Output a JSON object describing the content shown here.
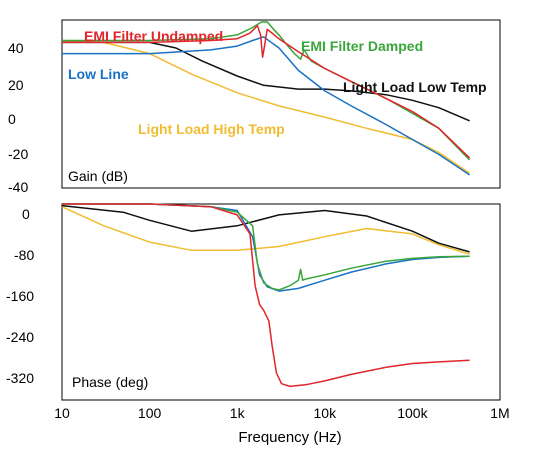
{
  "chart_data": [
    {
      "type": "line",
      "x_scale": "log",
      "xlim": [
        10,
        1000000
      ],
      "ylim": [
        -40,
        50
      ],
      "yticks": [
        40,
        20,
        0,
        -20,
        -40
      ],
      "ylabel": "Gain (dB)",
      "series": [
        {
          "name": "EMI Filter Undamped",
          "color": "#e0252b",
          "x": [
            10,
            100,
            500,
            1000,
            1400,
            1700,
            1850,
            1950,
            2050,
            2200,
            2500,
            2800,
            3200,
            5000,
            10000,
            20000,
            50000,
            100000,
            200000,
            450000
          ],
          "y": [
            38,
            38,
            39,
            40,
            43,
            47,
            42,
            30,
            36,
            45,
            43,
            41,
            39,
            33,
            24,
            17,
            8,
            1,
            -8,
            -24
          ]
        },
        {
          "name": "EMI Filter Damped",
          "color": "#3aa63a",
          "x": [
            10,
            100,
            500,
            1000,
            1500,
            1900,
            2200,
            2600,
            3000,
            3500,
            4500,
            5300,
            5800,
            7000,
            10000,
            20000,
            50000,
            100000,
            200000,
            450000
          ],
          "y": [
            39,
            39,
            40,
            42,
            46,
            49,
            49,
            45,
            42,
            38,
            32,
            29,
            34,
            28,
            24,
            17,
            8,
            0,
            -8,
            -25
          ]
        },
        {
          "name": "Low Line",
          "color": "#1a72c4",
          "x": [
            10,
            100,
            500,
            1000,
            1500,
            2000,
            3000,
            5000,
            10000,
            20000,
            50000,
            100000,
            200000,
            450000
          ],
          "y": [
            32,
            32,
            34,
            36,
            39,
            41,
            35,
            23,
            12,
            4,
            -6,
            -14,
            -22,
            -33
          ]
        },
        {
          "name": "Light Load Low Temp",
          "color": "#111111",
          "x": [
            10,
            100,
            200,
            400,
            1000,
            2000,
            5000,
            10000,
            20000,
            50000,
            100000,
            200000,
            450000
          ],
          "y": [
            38,
            38,
            35,
            28,
            20,
            15,
            13,
            13,
            12,
            10,
            7,
            3,
            -4
          ]
        },
        {
          "name": "Light Load High Temp",
          "color": "#f2bc30",
          "x": [
            10,
            30,
            100,
            300,
            1000,
            3000,
            10000,
            30000,
            100000,
            200000,
            450000
          ],
          "y": [
            39,
            38,
            32,
            21,
            11,
            4,
            -2,
            -8,
            -14,
            -21,
            -32
          ]
        }
      ]
    },
    {
      "type": "line",
      "x_scale": "log",
      "xlim": [
        10,
        1000000
      ],
      "ylim": [
        -360,
        0
      ],
      "yticks": [
        0,
        -80,
        -160,
        -240,
        -320
      ],
      "ylabel": "Phase (deg)",
      "xlabel": "Frequency (Hz)",
      "xticks": [
        10,
        100,
        1000,
        10000,
        100000,
        1000000
      ],
      "xtick_labels": [
        "10",
        "100",
        "1k",
        "10k",
        "100k",
        "1M"
      ],
      "series": [
        {
          "name": "EMI Filter Undamped",
          "color": "#e0252b",
          "x": [
            10,
            100,
            500,
            1000,
            1400,
            1600,
            1800,
            2000,
            2300,
            2500,
            2800,
            3200,
            4000,
            6000,
            10000,
            20000,
            50000,
            100000,
            200000,
            450000
          ],
          "y": [
            0,
            0,
            -5,
            -20,
            -55,
            -150,
            -185,
            -195,
            -215,
            -260,
            -310,
            -330,
            -335,
            -332,
            -325,
            -313,
            -300,
            -293,
            -290,
            -287
          ]
        },
        {
          "name": "EMI Filter Damped",
          "color": "#3aa63a",
          "x": [
            10,
            100,
            500,
            1000,
            1500,
            1700,
            2000,
            2500,
            3000,
            4000,
            5000,
            5300,
            5600,
            6000,
            10000,
            20000,
            50000,
            100000,
            200000,
            450000
          ],
          "y": [
            0,
            0,
            -5,
            -15,
            -40,
            -110,
            -145,
            -155,
            -158,
            -150,
            -140,
            -120,
            -140,
            -138,
            -130,
            -118,
            -105,
            -100,
            -97,
            -96
          ]
        },
        {
          "name": "Low Line",
          "color": "#1a72c4",
          "x": [
            10,
            100,
            500,
            1000,
            1500,
            1800,
            2200,
            3000,
            5000,
            10000,
            20000,
            50000,
            100000,
            200000,
            450000
          ],
          "y": [
            0,
            0,
            -5,
            -12,
            -60,
            -130,
            -152,
            -160,
            -155,
            -140,
            -125,
            -110,
            -102,
            -98,
            -96
          ]
        },
        {
          "name": "Light Load Low Temp",
          "color": "#111111",
          "x": [
            10,
            50,
            100,
            300,
            1000,
            3000,
            10000,
            30000,
            100000,
            200000,
            450000
          ],
          "y": [
            -3,
            -15,
            -30,
            -50,
            -40,
            -20,
            -12,
            -22,
            -50,
            -72,
            -88
          ]
        },
        {
          "name": "Light Load High Temp",
          "color": "#f2bc30",
          "x": [
            10,
            30,
            100,
            300,
            1000,
            3000,
            10000,
            30000,
            100000,
            200000,
            450000
          ],
          "y": [
            -5,
            -40,
            -70,
            -85,
            -85,
            -78,
            -60,
            -45,
            -55,
            -75,
            -92
          ]
        }
      ]
    }
  ]
}
